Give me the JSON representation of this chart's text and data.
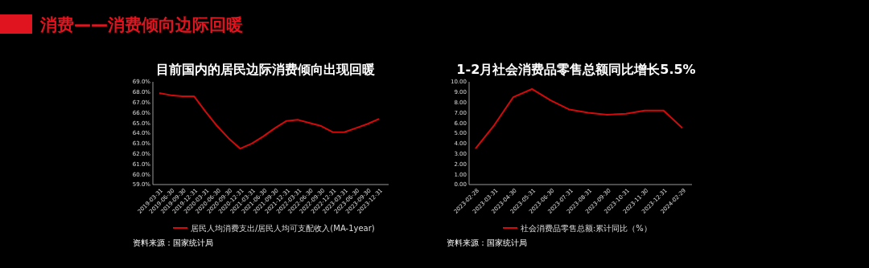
{
  "chart_data": [
    {
      "type": "other",
      "title": "消费——消费倾向边际回暖"
    },
    {
      "type": "line",
      "title": "目前国内的居民边际消费倾向出现回暖",
      "categories": [
        "2019-03-31",
        "2019-06-30",
        "2019-09-30",
        "2019-12-31",
        "2020-03-31",
        "2020-06-30",
        "2020-09-30",
        "2020-12-31",
        "2021-03-31",
        "2021-06-30",
        "2021-09-30",
        "2021-12-31",
        "2022-03-31",
        "2022-06-30",
        "2022-09-30",
        "2022-12-31",
        "2023-03-31",
        "2023-06-30",
        "2023-09-30",
        "2023-12-31"
      ],
      "series": [
        {
          "name": "居民人均消费支出/居民人均可支配收入(MA-1year)",
          "color": "#d40a0a",
          "values": [
            67.9,
            67.7,
            67.6,
            67.6,
            66.1,
            64.7,
            63.5,
            62.5,
            63.0,
            63.7,
            64.5,
            65.2,
            65.3,
            65.0,
            64.7,
            64.1,
            64.1,
            64.5,
            64.9,
            65.4
          ]
        }
      ],
      "ylim": [
        59,
        69
      ],
      "yticks": [
        {
          "value": 59,
          "label": "59.0%"
        },
        {
          "value": 60,
          "label": "60.0%"
        },
        {
          "value": 61,
          "label": "61.0%"
        },
        {
          "value": 62,
          "label": "62.0%"
        },
        {
          "value": 63,
          "label": "63.0%"
        },
        {
          "value": 64,
          "label": "64.0%"
        },
        {
          "value": 65,
          "label": "65.0%"
        },
        {
          "value": 66,
          "label": "66.0%"
        },
        {
          "value": 67,
          "label": "67.0%"
        },
        {
          "value": 68,
          "label": "68.0%"
        },
        {
          "value": 69,
          "label": "69.0%"
        }
      ],
      "grid": false,
      "legend": "bottom",
      "annotations": [
        "资料来源：国家统计局"
      ]
    },
    {
      "type": "line",
      "title": "1-2月社会消费品零售总额同比增长5.5%",
      "categories": [
        "2023-02-28",
        "2023-03-31",
        "2023-04-30",
        "2023-05-31",
        "2023-06-30",
        "2023-07-31",
        "2023-08-31",
        "2023-09-30",
        "2023-10-31",
        "2023-11-30",
        "2023-12-31",
        "2024-02-29"
      ],
      "series": [
        {
          "name": "社会消费品零售总额:累计同比（%）",
          "color": "#d40a0a",
          "values": [
            3.5,
            5.8,
            8.5,
            9.3,
            8.2,
            7.3,
            7.0,
            6.8,
            6.9,
            7.2,
            7.2,
            5.5
          ]
        }
      ],
      "ylim": [
        0,
        10
      ],
      "yticks": [
        {
          "value": 0,
          "label": "0.00"
        },
        {
          "value": 1,
          "label": "1.00"
        },
        {
          "value": 2,
          "label": "2.00"
        },
        {
          "value": 3,
          "label": "3.00"
        },
        {
          "value": 4,
          "label": "4.00"
        },
        {
          "value": 5,
          "label": "5.00"
        },
        {
          "value": 6,
          "label": "6.00"
        },
        {
          "value": 7,
          "label": "7.00"
        },
        {
          "value": 8,
          "label": "8.00"
        },
        {
          "value": 9,
          "label": "9.00"
        },
        {
          "value": 10,
          "label": "10.00"
        }
      ],
      "grid": false,
      "legend": "bottom",
      "annotations": [
        "资料来源：国家统计局"
      ]
    }
  ]
}
